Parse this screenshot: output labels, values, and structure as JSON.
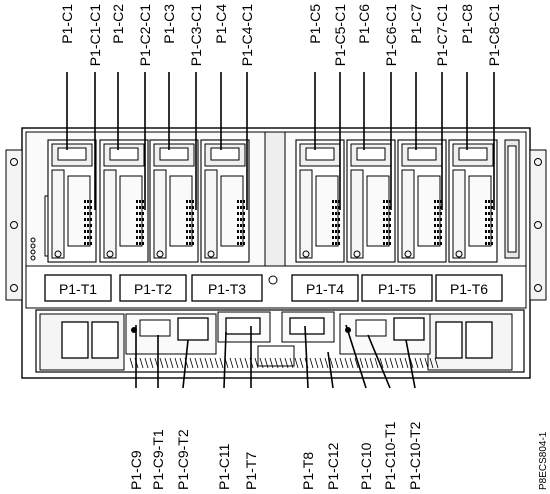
{
  "top_callouts": [
    "P1-C1",
    "P1-C1-C1",
    "P1-C2",
    "P1-C2-C1",
    "P1-C3",
    "P1-C3-C1",
    "P1-C4",
    "P1-C4-C1",
    "P1-C5",
    "P1-C5-C1",
    "P1-C6",
    "P1-C6-C1",
    "P1-C7",
    "P1-C7-C1",
    "P1-C8",
    "P1-C8-C1"
  ],
  "ports": [
    "P1-T1",
    "P1-T2",
    "P1-T3",
    "P1-T4",
    "P1-T5",
    "P1-T6"
  ],
  "bottom_callouts": [
    "P1-C9",
    "P1-C9-T1",
    "P1-C9-T2",
    "P1-C11",
    "P1-T7",
    "P1-T8",
    "P1-C12",
    "P1-C10",
    "P1-C10-T1",
    "P1-C10-T2"
  ],
  "figure_id": "P8ECS804-1",
  "colors": {
    "line": "#000000",
    "frame": "#ffffff",
    "panel": "#f2f2f2",
    "shade": "#cfcfcf"
  }
}
